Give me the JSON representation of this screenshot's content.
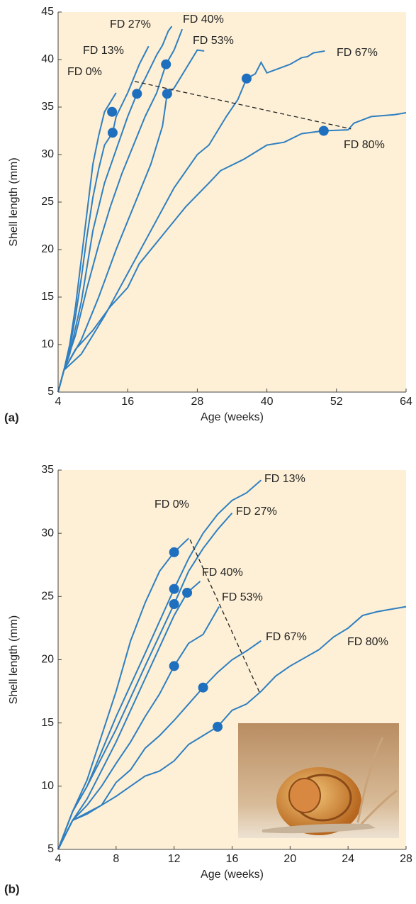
{
  "chart_data": [
    {
      "type": "line",
      "panel_label": "(a)",
      "xlabel": "Age (weeks)",
      "ylabel": "Shell length (mm)",
      "xlim": [
        4,
        64
      ],
      "ylim": [
        5,
        45
      ],
      "xticks": [
        4,
        16,
        28,
        40,
        52,
        64
      ],
      "yticks": [
        5,
        10,
        15,
        20,
        25,
        30,
        35,
        40,
        45
      ],
      "series": [
        {
          "name": "FD 0%",
          "color": "#2f7fc1",
          "x": [
            4,
            5,
            6,
            7,
            8,
            9,
            10,
            11,
            12,
            13,
            14
          ],
          "values": [
            5,
            7.3,
            10,
            14,
            19,
            24,
            29,
            32,
            34.5,
            35.5,
            36.5
          ],
          "marker": {
            "x": 13.3,
            "y": 34.5
          }
        },
        {
          "name": "FD 13%",
          "color": "#2f7fc1",
          "x": [
            4,
            5,
            6,
            7,
            8,
            9,
            10,
            11,
            12,
            13.4,
            14,
            16,
            18,
            19.6
          ],
          "values": [
            5,
            7.3,
            9.5,
            13,
            17,
            21.5,
            25.5,
            28.5,
            31,
            32.3,
            34,
            36.5,
            39.5,
            41.4
          ],
          "marker": {
            "x": 13.4,
            "y": 32.3
          }
        },
        {
          "name": "FD 27%",
          "color": "#2f7fc1",
          "x": [
            4,
            5,
            6,
            8,
            10,
            12,
            14,
            16,
            17.6,
            19,
            21,
            22,
            23,
            23.6
          ],
          "values": [
            5,
            7.3,
            9,
            14.5,
            22,
            27,
            30.5,
            34,
            36.4,
            38,
            40.5,
            41.5,
            43,
            43.5
          ],
          "marker": {
            "x": 17.6,
            "y": 36.4
          }
        },
        {
          "name": "FD 40%",
          "color": "#2f7fc1",
          "x": [
            4,
            5,
            7,
            9,
            11,
            13,
            15,
            17,
            19,
            21,
            22.6,
            24,
            25.4
          ],
          "values": [
            5,
            7.3,
            11,
            16,
            20.5,
            24.5,
            28,
            31,
            34,
            36.5,
            39.5,
            41,
            43.2
          ],
          "marker": {
            "x": 22.6,
            "y": 39.5
          }
        },
        {
          "name": "FD 53%",
          "color": "#2f7fc1",
          "x": [
            4,
            5,
            8,
            11,
            14,
            16,
            18,
            20,
            22,
            22.8,
            24,
            26,
            28,
            29.2
          ],
          "values": [
            5,
            7.3,
            10.5,
            15,
            20,
            23,
            26,
            29,
            33,
            36.4,
            37,
            39,
            41,
            40.9
          ],
          "marker": {
            "x": 22.8,
            "y": 36.4
          }
        },
        {
          "name": "FD 67%",
          "color": "#2f7fc1",
          "x": [
            4,
            5,
            8,
            12,
            16,
            20,
            24,
            28,
            30,
            33,
            35,
            36.5,
            38,
            39,
            40,
            44,
            46,
            47,
            48,
            50
          ],
          "values": [
            5,
            7.3,
            9,
            13,
            17.5,
            22,
            26.5,
            30,
            31,
            34,
            35.8,
            38,
            38.5,
            39.7,
            38.6,
            39.5,
            40.2,
            40.3,
            40.7,
            40.9
          ],
          "marker": {
            "x": 36.5,
            "y": 38
          }
        },
        {
          "name": "FD 80%",
          "color": "#2f7fc1",
          "x": [
            4,
            5,
            7,
            10,
            13,
            16,
            18,
            22,
            26,
            30,
            32,
            36,
            40,
            43,
            46,
            49.8,
            54,
            55,
            58,
            62,
            64
          ],
          "values": [
            5,
            7.3,
            9.5,
            11.5,
            14,
            16,
            18.5,
            21.5,
            24.5,
            27,
            28.3,
            29.5,
            31,
            31.3,
            32.2,
            32.5,
            32.6,
            33.3,
            34,
            34.2,
            34.4
          ],
          "marker": {
            "x": 49.8,
            "y": 32.5
          }
        }
      ],
      "trend_line": {
        "x": [
          17.2,
          54.5
        ],
        "y": [
          37.7,
          32.7
        ]
      }
    },
    {
      "type": "line",
      "panel_label": "(b)",
      "xlabel": "Age (weeks)",
      "ylabel": "Shell length (mm)",
      "xlim": [
        4,
        28
      ],
      "ylim": [
        5,
        35
      ],
      "xticks": [
        4,
        8,
        12,
        16,
        20,
        24,
        28
      ],
      "yticks": [
        5,
        10,
        15,
        20,
        25,
        30,
        35
      ],
      "series": [
        {
          "name": "FD 0%",
          "color": "#2f7fc1",
          "x": [
            4,
            5,
            6,
            7,
            8,
            9,
            10,
            11,
            12,
            13
          ],
          "values": [
            5,
            8,
            10.5,
            14,
            17.5,
            21.5,
            24.5,
            27,
            28.5,
            29.6
          ],
          "marker": {
            "x": 12,
            "y": 28.5
          }
        },
        {
          "name": "FD 13%",
          "color": "#2f7fc1",
          "x": [
            4,
            5,
            6,
            8,
            10,
            12,
            13,
            14,
            15,
            16,
            17,
            18
          ],
          "values": [
            5,
            8,
            10,
            15.5,
            20.5,
            25.6,
            28,
            30,
            31.5,
            32.6,
            33.2,
            34.2
          ],
          "marker": {
            "x": 12,
            "y": 25.6
          }
        },
        {
          "name": "FD 27%",
          "color": "#2f7fc1",
          "x": [
            4,
            5,
            6,
            8,
            10,
            12,
            13,
            14,
            15,
            16
          ],
          "values": [
            5,
            8,
            10,
            14.5,
            19.5,
            24.4,
            27,
            28.8,
            30.3,
            31.6
          ],
          "marker": {
            "x": 12,
            "y": 24.4
          }
        },
        {
          "name": "FD 40%",
          "color": "#2f7fc1",
          "x": [
            4,
            5,
            6,
            8,
            10,
            11,
            12,
            12.9,
            13.8
          ],
          "values": [
            5,
            7.3,
            9,
            13.5,
            18.5,
            21,
            23.5,
            25.3,
            26.2
          ],
          "marker": {
            "x": 12.9,
            "y": 25.3
          }
        },
        {
          "name": "FD 53%",
          "color": "#2f7fc1",
          "x": [
            4,
            5,
            6,
            7,
            8,
            9,
            10,
            11,
            12,
            13,
            14,
            15.1
          ],
          "values": [
            5,
            7.3,
            8.5,
            10,
            11.8,
            13.5,
            15.5,
            17.3,
            19.5,
            21.3,
            22,
            24.2
          ],
          "marker": {
            "x": 12,
            "y": 19.5
          }
        },
        {
          "name": "FD 67%",
          "color": "#2f7fc1",
          "x": [
            4,
            5,
            7,
            8,
            9,
            10,
            11,
            12,
            13,
            14,
            15,
            16,
            17,
            18
          ],
          "values": [
            5,
            7.3,
            8.5,
            10.3,
            11.3,
            13,
            14,
            15.2,
            16.5,
            17.8,
            19,
            20,
            20.7,
            21.5
          ],
          "marker": {
            "x": 14,
            "y": 17.8
          }
        },
        {
          "name": "FD 80%",
          "color": "#2f7fc1",
          "x": [
            4,
            5,
            6,
            7,
            8,
            9,
            10,
            11,
            12,
            13,
            14,
            15,
            16,
            17,
            18,
            19,
            20,
            22,
            23,
            24,
            25,
            26,
            27,
            28
          ],
          "values": [
            5,
            7.3,
            7.8,
            8.5,
            9.2,
            10,
            10.8,
            11.2,
            12,
            13.3,
            14,
            14.7,
            16,
            16.5,
            17.5,
            18.7,
            19.5,
            20.8,
            21.8,
            22.5,
            23.5,
            23.8,
            24,
            24.2
          ],
          "marker": {
            "x": 15,
            "y": 14.7
          }
        }
      ],
      "trend_line": {
        "x": [
          13.1,
          17.9
        ],
        "y": [
          29.5,
          17.4
        ]
      }
    }
  ]
}
